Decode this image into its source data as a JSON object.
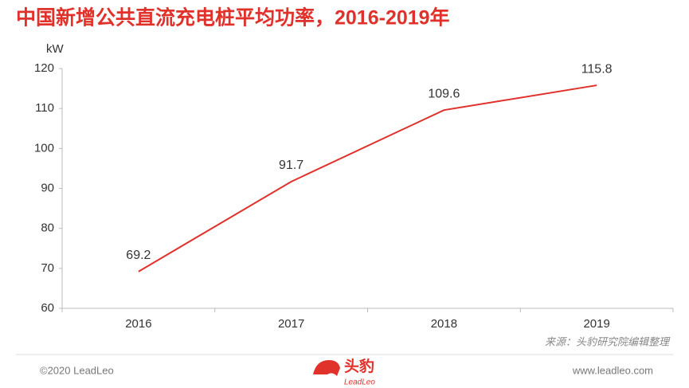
{
  "chart_data": {
    "type": "line",
    "title": "中国新增公共直流充电桩平均功率，2016-2019年",
    "y_unit": "kW",
    "categories": [
      "2016",
      "2017",
      "2018",
      "2019"
    ],
    "series": [
      {
        "name": "平均功率",
        "color": "#e0312a",
        "values": [
          69.2,
          91.7,
          109.6,
          115.8
        ]
      }
    ],
    "ylim": [
      60,
      120
    ],
    "yticks": [
      60,
      70,
      80,
      90,
      100,
      110,
      120
    ],
    "grid": false,
    "data_labels": true
  },
  "source": "来源：头豹研究院编辑整理",
  "footer": {
    "copyright": "©2020 LeadLeo",
    "logo_cn": "头豹",
    "logo_en": "LeadLeo",
    "website": "www.leadleo.com"
  }
}
